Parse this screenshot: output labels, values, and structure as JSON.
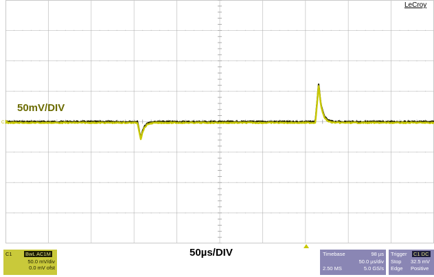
{
  "brand": "LeCroy",
  "vertical_scale_annotation": "50mV/DIV",
  "horizontal_scale_annotation": "50µs/DIV",
  "channel_marker": "C1",
  "colors": {
    "trace": "#c8c800",
    "trace_dark": "#2a2a00",
    "grid": "#c8c8c8",
    "panel": "#8a86b4",
    "channel_panel": "#c9c93a"
  },
  "channel_panel": {
    "channel": "C1",
    "coupling": "BwL AC1M",
    "volts_per_div": "50.0 mV/div",
    "offset": "0.0 mV ofst"
  },
  "timebase_panel": {
    "title": "Timebase",
    "delay": "98 µs",
    "time_per_div": "50.0 µs/div",
    "memory": "2.50 MS",
    "sample_rate": "5.0 GS/s"
  },
  "trigger_panel": {
    "title": "Trigger",
    "source": "C1 DC",
    "mode": "Stop",
    "level": "32.5 mV",
    "type": "Edge",
    "slope": "Positive"
  },
  "waveform": {
    "time_div": 50,
    "volt_div": 50,
    "baseline_div": 0.0,
    "events": [
      {
        "kind": "negative_spike",
        "time_div": 3.1,
        "peak_div": -0.55
      },
      {
        "kind": "positive_spike",
        "time_div": 7.25,
        "peak_div": 1.25
      }
    ]
  }
}
